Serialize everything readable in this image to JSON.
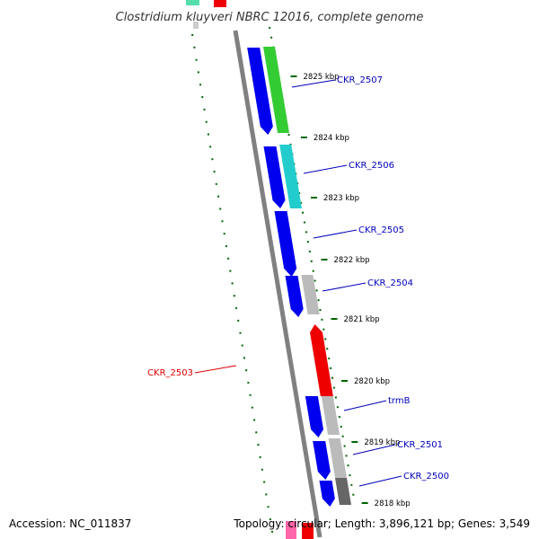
{
  "title": "Clostridium kluyveri NBRC 12016, complete genome",
  "footer": {
    "accession": "Accession: NC_011837",
    "topology": "Topology: circular; Length: 3,896,121 bp; Genes: 3,549"
  },
  "ticks": [
    "2825 kbp",
    "2824 kbp",
    "2823 kbp",
    "2822 kbp",
    "2821 kbp",
    "2820 kbp",
    "2819 kbp",
    "2818 kbp"
  ],
  "genes": [
    {
      "name": "CKR_2507",
      "color": "#0000bb"
    },
    {
      "name": "CKR_2506",
      "color": "#0000bb"
    },
    {
      "name": "CKR_2505",
      "color": "#0000bb"
    },
    {
      "name": "CKR_2504",
      "color": "#0000bb"
    },
    {
      "name": "CKR_2503",
      "color": "#dd0000"
    },
    {
      "name": "trmB",
      "color": "#0000bb"
    },
    {
      "name": "CKR_2501",
      "color": "#0000bb"
    },
    {
      "name": "CKR_2500",
      "color": "#0000bb"
    }
  ],
  "colors": {
    "backbone": "#808080",
    "forward_cds": "#0000ee",
    "reverse_cds": "#ee0000",
    "cog_green": "#33cc33",
    "cog_cyan": "#22cccc",
    "cog_gray": "#bbbbbb",
    "cog_darkgray": "#666666",
    "gc_track": "#006600",
    "edge_green": "#55ddaa",
    "edge_pink": "#ff66aa"
  }
}
